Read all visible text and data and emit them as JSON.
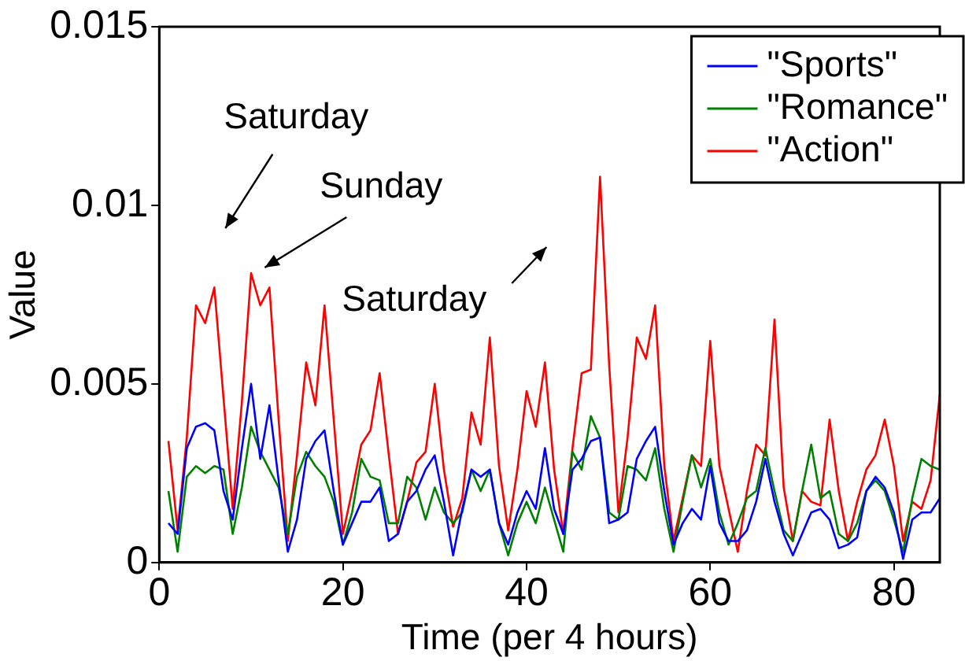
{
  "chart_data": {
    "type": "line",
    "xlabel": "Time (per 4 hours)",
    "ylabel": "Value",
    "x": [
      1,
      2,
      3,
      4,
      5,
      6,
      7,
      8,
      9,
      10,
      11,
      12,
      13,
      14,
      15,
      16,
      17,
      18,
      19,
      20,
      21,
      22,
      23,
      24,
      25,
      26,
      27,
      28,
      29,
      30,
      31,
      32,
      33,
      34,
      35,
      36,
      37,
      38,
      39,
      40,
      41,
      42,
      43,
      44,
      45,
      46,
      47,
      48,
      49,
      50,
      51,
      52,
      53,
      54,
      55,
      56,
      57,
      58,
      59,
      60,
      61,
      62,
      63,
      64,
      65,
      66,
      67,
      68,
      69,
      70,
      71,
      72,
      73,
      74,
      75,
      76,
      77,
      78,
      79,
      80,
      81,
      82,
      83,
      84,
      85
    ],
    "series": [
      {
        "name": "\"Sports\"",
        "color": "#0000ff",
        "values": [
          0.0011,
          0.0008,
          0.0032,
          0.0038,
          0.0039,
          0.0037,
          0.002,
          0.0012,
          0.0032,
          0.005,
          0.0029,
          0.0044,
          0.0023,
          0.0003,
          0.0012,
          0.0029,
          0.0034,
          0.0037,
          0.002,
          0.0005,
          0.0011,
          0.0017,
          0.0017,
          0.0021,
          0.0006,
          0.0008,
          0.0017,
          0.002,
          0.0026,
          0.003,
          0.0017,
          0.0002,
          0.0015,
          0.0026,
          0.0024,
          0.0026,
          0.0011,
          0.0005,
          0.0014,
          0.002,
          0.0015,
          0.0032,
          0.0015,
          0.0008,
          0.0026,
          0.0029,
          0.0034,
          0.0035,
          0.0011,
          0.0012,
          0.0014,
          0.0029,
          0.0034,
          0.0038,
          0.002,
          0.0005,
          0.0011,
          0.0015,
          0.0012,
          0.0027,
          0.0011,
          0.0006,
          0.0006,
          0.0009,
          0.0017,
          0.0029,
          0.0017,
          0.0008,
          0.0002,
          0.0008,
          0.0014,
          0.0015,
          0.0012,
          0.0004,
          0.0005,
          0.0007,
          0.002,
          0.0024,
          0.0021,
          0.0014,
          0.0001,
          0.0012,
          0.0014,
          0.0014,
          0.0018
        ]
      },
      {
        "name": "\"Romance\"",
        "color": "#008000",
        "values": [
          0.002,
          0.0003,
          0.0024,
          0.0027,
          0.0025,
          0.0027,
          0.0026,
          0.0008,
          0.0021,
          0.0038,
          0.0031,
          0.0026,
          0.0021,
          0.0008,
          0.0024,
          0.0031,
          0.0027,
          0.0024,
          0.0017,
          0.0005,
          0.0014,
          0.0029,
          0.0024,
          0.0023,
          0.0011,
          0.0011,
          0.0024,
          0.0021,
          0.0012,
          0.0021,
          0.0014,
          0.0011,
          0.0014,
          0.0026,
          0.002,
          0.0026,
          0.0011,
          0.0002,
          0.0011,
          0.0017,
          0.0011,
          0.0021,
          0.0012,
          0.0003,
          0.0031,
          0.0026,
          0.0041,
          0.0035,
          0.0014,
          0.0012,
          0.0027,
          0.0026,
          0.0023,
          0.0032,
          0.0015,
          0.0003,
          0.0017,
          0.003,
          0.0021,
          0.0029,
          0.0014,
          0.0005,
          0.0011,
          0.0018,
          0.002,
          0.0032,
          0.002,
          0.0009,
          0.0006,
          0.002,
          0.0033,
          0.0018,
          0.002,
          0.0008,
          0.0006,
          0.0011,
          0.002,
          0.0023,
          0.002,
          0.0012,
          0.0003,
          0.0018,
          0.0029,
          0.0027,
          0.0026
        ]
      },
      {
        "name": "\"Action\"",
        "color": "#ff0000",
        "values": [
          0.0034,
          0.0009,
          0.0035,
          0.0072,
          0.0067,
          0.0077,
          0.0046,
          0.0015,
          0.0045,
          0.0081,
          0.0072,
          0.0077,
          0.004,
          0.0006,
          0.003,
          0.0056,
          0.0044,
          0.0072,
          0.004,
          0.0008,
          0.002,
          0.0033,
          0.0037,
          0.0053,
          0.003,
          0.0008,
          0.0017,
          0.0028,
          0.0031,
          0.005,
          0.0026,
          0.001,
          0.0018,
          0.0042,
          0.0033,
          0.0063,
          0.0027,
          0.0009,
          0.0026,
          0.0048,
          0.0038,
          0.0056,
          0.0026,
          0.0008,
          0.0032,
          0.0053,
          0.0054,
          0.0108,
          0.0055,
          0.0014,
          0.0035,
          0.0063,
          0.0057,
          0.0072,
          0.0027,
          0.0006,
          0.0018,
          0.003,
          0.0027,
          0.0062,
          0.0027,
          0.0015,
          0.0003,
          0.002,
          0.0033,
          0.003,
          0.0068,
          0.0021,
          0.0006,
          0.002,
          0.0017,
          0.0016,
          0.004,
          0.002,
          0.0006,
          0.0017,
          0.0026,
          0.003,
          0.004,
          0.0027,
          0.0006,
          0.0017,
          0.0015,
          0.0023,
          0.0047
        ]
      }
    ],
    "xlim": [
      0,
      85
    ],
    "xticks": [
      0,
      20,
      40,
      60,
      80
    ],
    "ylim": [
      0,
      0.015
    ],
    "yticks": [
      0,
      0.005,
      0.01,
      0.015
    ],
    "grid": false,
    "legend": "top right",
    "marker": "none",
    "line_style": "solid",
    "annotations": [
      "Saturday",
      "Sunday",
      "Saturday"
    ]
  }
}
